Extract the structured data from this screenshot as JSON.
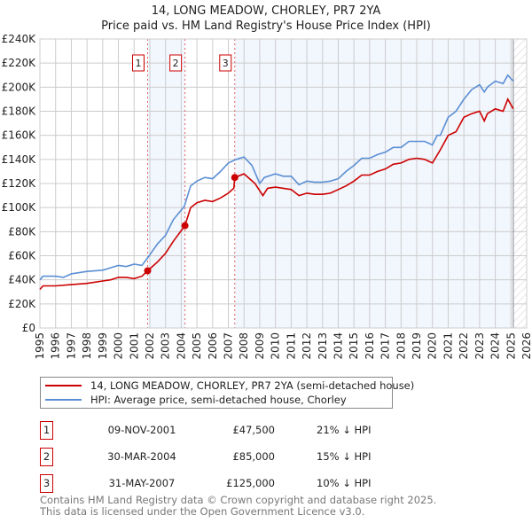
{
  "title_line1": "14, LONG MEADOW, CHORLEY, PR7 2YA",
  "title_line2": "Price paid vs. HM Land Registry's House Price Index (HPI)",
  "legend": {
    "property": "14, LONG MEADOW, CHORLEY, PR7 2YA (semi-detached house)",
    "hpi": "HPI: Average price, semi-detached house, Chorley"
  },
  "sales": [
    {
      "num": "1",
      "date": "09-NOV-2001",
      "price": "£47,500",
      "hpi": "21% ↓ HPI"
    },
    {
      "num": "2",
      "date": "30-MAR-2004",
      "price": "£85,000",
      "hpi": "15% ↓ HPI"
    },
    {
      "num": "3",
      "date": "31-MAY-2007",
      "price": "£125,000",
      "hpi": "10% ↓ HPI"
    }
  ],
  "footer_line1": "Contains HM Land Registry data © Crown copyright and database right 2025.",
  "footer_line2": "This data is licensed under the Open Government Licence v3.0.",
  "chart_data": {
    "type": "line",
    "xlim": [
      1995,
      2026
    ],
    "ylim": [
      0,
      240000
    ],
    "x_ticks": [
      1995,
      1996,
      1997,
      1998,
      1999,
      2000,
      2001,
      2002,
      2003,
      2004,
      2005,
      2006,
      2007,
      2008,
      2009,
      2010,
      2011,
      2012,
      2013,
      2014,
      2015,
      2016,
      2017,
      2018,
      2019,
      2020,
      2021,
      2022,
      2023,
      2024,
      2025,
      2026
    ],
    "y_ticks": [
      0,
      20000,
      40000,
      60000,
      80000,
      100000,
      120000,
      140000,
      160000,
      180000,
      200000,
      220000,
      240000
    ],
    "y_tick_labels": [
      "£0",
      "£20K",
      "£40K",
      "£60K",
      "£80K",
      "£100K",
      "£120K",
      "£140K",
      "£160K",
      "£180K",
      "£200K",
      "£220K",
      "£240K"
    ],
    "grid": true,
    "colors": {
      "property": "#cc0000",
      "hpi": "#5b8fd4",
      "shade": "#f2f6fd"
    },
    "data_end": 2025.15,
    "sale_points": [
      {
        "label": "1",
        "x": 2001.86,
        "y": 47500
      },
      {
        "label": "2",
        "x": 2004.24,
        "y": 85000
      },
      {
        "label": "3",
        "x": 2007.41,
        "y": 125000
      }
    ],
    "series": [
      {
        "name": "HPI: Average price, semi-detached house, Chorley",
        "key": "hpi",
        "x": [
          1995,
          1995.2,
          1996,
          1996.5,
          1997,
          1998,
          1999,
          1999.5,
          2000,
          2000.5,
          2001,
          2001.5,
          2001.9,
          2002.5,
          2003,
          2003.5,
          2004.2,
          2004.6,
          2005,
          2005.5,
          2006,
          2006.5,
          2007,
          2007.5,
          2008,
          2008.5,
          2009,
          2009.3,
          2010,
          2010.5,
          2011,
          2011.5,
          2012,
          2012.5,
          2013,
          2013.5,
          2014,
          2014.5,
          2015,
          2015.5,
          2016,
          2016.5,
          2017,
          2017.5,
          2018,
          2018.5,
          2019,
          2019.5,
          2020,
          2020.3,
          2020.5,
          2021,
          2021.5,
          2022,
          2022.5,
          2023,
          2023.3,
          2023.5,
          2024,
          2024.5,
          2024.8,
          2025.15
        ],
        "y": [
          40000,
          43000,
          43000,
          42000,
          45000,
          47000,
          48000,
          50000,
          52000,
          51000,
          53000,
          52000,
          59000,
          70000,
          77000,
          90000,
          101000,
          118000,
          122000,
          125000,
          124000,
          130000,
          137000,
          140000,
          142000,
          135000,
          120000,
          125000,
          128000,
          126000,
          126000,
          119000,
          122000,
          121000,
          121000,
          122000,
          124000,
          130000,
          135000,
          141000,
          141000,
          144000,
          146000,
          150000,
          150000,
          155000,
          155000,
          155000,
          152000,
          160000,
          160000,
          175000,
          180000,
          190000,
          198000,
          202000,
          196000,
          200000,
          205000,
          203000,
          210000,
          205000
        ]
      },
      {
        "name": "14, LONG MEADOW, CHORLEY, PR7 2YA (semi-detached house)",
        "key": "property",
        "x": [
          1995,
          1995.2,
          1996,
          1997,
          1998,
          1999,
          1999.5,
          2000,
          2000.5,
          2001,
          2001.5,
          2001.86,
          2002.5,
          2003,
          2003.5,
          2004.24,
          2004.6,
          2005,
          2005.5,
          2006,
          2006.5,
          2007,
          2007.35,
          2007.41,
          2008,
          2008.7,
          2009.2,
          2009.5,
          2010,
          2011,
          2011.5,
          2012,
          2012.5,
          2013,
          2013.5,
          2014,
          2014.5,
          2015,
          2015.5,
          2016,
          2016.5,
          2017,
          2017.5,
          2018,
          2018.5,
          2019,
          2019.5,
          2020,
          2020.5,
          2021,
          2021.5,
          2022,
          2022.5,
          2023,
          2023.3,
          2023.5,
          2024,
          2024.5,
          2024.8,
          2025.15
        ],
        "y": [
          32000,
          35000,
          35000,
          36000,
          37000,
          39000,
          40000,
          42000,
          42000,
          41000,
          43000,
          47500,
          55000,
          62000,
          72000,
          85000,
          100000,
          104000,
          106000,
          105000,
          108000,
          112000,
          116000,
          125000,
          128000,
          120000,
          110000,
          116000,
          117000,
          115000,
          110000,
          112000,
          111000,
          111000,
          112000,
          115000,
          118000,
          122000,
          127000,
          127000,
          130000,
          132000,
          136000,
          137000,
          140000,
          141000,
          140000,
          137000,
          148000,
          160000,
          163000,
          175000,
          178000,
          180000,
          172000,
          178000,
          182000,
          180000,
          190000,
          182000
        ]
      }
    ]
  }
}
